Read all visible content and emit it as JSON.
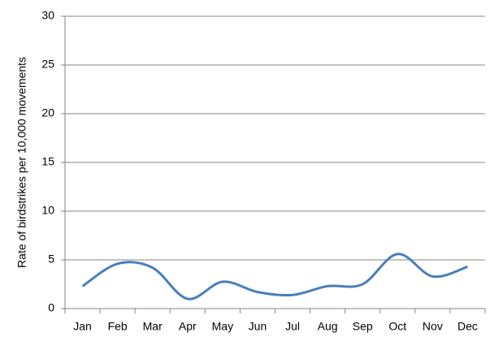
{
  "chart_data": {
    "type": "line",
    "y_label": "Rate of birdstrikes per 10,000 movements",
    "categories": [
      "Jan",
      "Feb",
      "Mar",
      "Apr",
      "May",
      "Jun",
      "Jul",
      "Aug",
      "Sep",
      "Oct",
      "Nov",
      "Dec"
    ],
    "series": [
      {
        "color": "#4a7ebb",
        "values": [
          2.3,
          4.6,
          4.2,
          1.0,
          2.75,
          1.7,
          1.4,
          2.3,
          2.5,
          5.6,
          3.3,
          4.3
        ]
      }
    ],
    "ylim": [
      0,
      30
    ],
    "yticks": [
      0,
      5,
      10,
      15,
      20,
      25,
      30
    ],
    "grid": true,
    "smooth": true
  }
}
